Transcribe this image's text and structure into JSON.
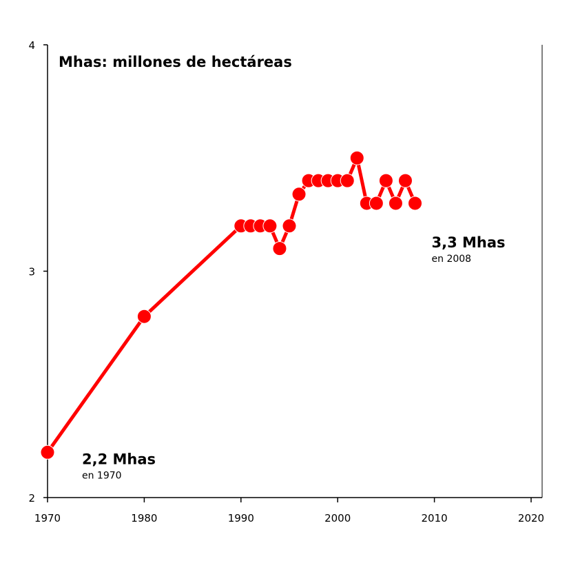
{
  "chart_data": {
    "type": "line",
    "unit_title": "Mhas: millones de hectáreas",
    "xlim": [
      1970,
      2020
    ],
    "ylim": [
      2,
      4
    ],
    "xticks": [
      1970,
      1980,
      1990,
      2000,
      2010,
      2020
    ],
    "yticks": [
      2,
      3,
      4
    ],
    "grid": false,
    "line_color": "#ff0000",
    "series": [
      {
        "x": [
          1970,
          1980,
          1990,
          1991,
          1992,
          1993,
          1994,
          1995,
          1996,
          1997,
          1998,
          1999,
          2000,
          2001,
          2002,
          2003,
          2004,
          2005,
          2006,
          2007,
          2008
        ],
        "y": [
          2.2,
          2.8,
          3.2,
          3.2,
          3.2,
          3.2,
          3.1,
          3.2,
          3.34,
          3.4,
          3.4,
          3.4,
          3.4,
          3.4,
          3.5,
          3.3,
          3.3,
          3.4,
          3.3,
          3.4,
          3.3
        ]
      }
    ],
    "annotations": [
      {
        "value": "2,2 Mhas",
        "sub": "en 1970",
        "x": 1970,
        "y": 2.2
      },
      {
        "value": "3,3 Mhas",
        "sub": "en 2008",
        "x": 2008,
        "y": 3.3
      }
    ]
  }
}
